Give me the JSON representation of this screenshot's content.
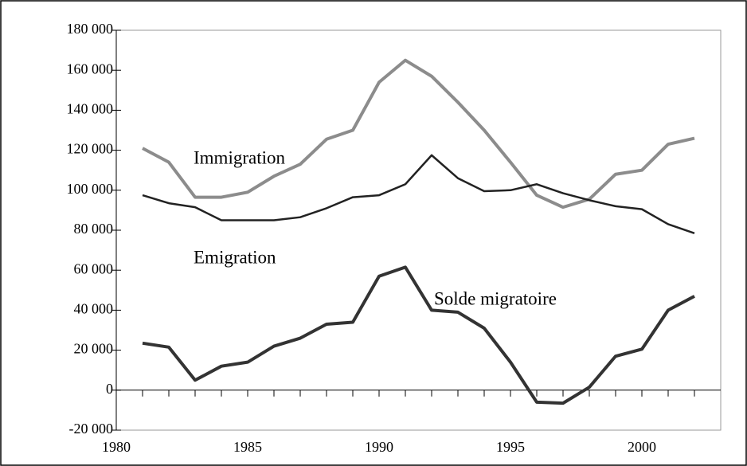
{
  "chart_data": {
    "type": "line",
    "x": [
      1981,
      1982,
      1983,
      1984,
      1985,
      1986,
      1987,
      1988,
      1989,
      1990,
      1991,
      1992,
      1993,
      1994,
      1995,
      1996,
      1997,
      1998,
      1999,
      2000,
      2001,
      2002
    ],
    "series": [
      {
        "name": "Immigration",
        "color": "#8c8c8c",
        "line_width": 4,
        "values": [
          121000,
          114000,
          96500,
          96500,
          99000,
          107000,
          113000,
          125500,
          130000,
          154000,
          165000,
          157000,
          144000,
          130000,
          114000,
          97500,
          91500,
          95500,
          108000,
          110000,
          123000,
          126000
        ]
      },
      {
        "name": "Emigration",
        "color": "#222222",
        "line_width": 2.5,
        "values": [
          97500,
          93500,
          91500,
          85000,
          85000,
          85000,
          86500,
          91000,
          96500,
          97500,
          103000,
          117500,
          106000,
          99500,
          100000,
          103000,
          98500,
          95000,
          92000,
          90500,
          83000,
          78500
        ]
      },
      {
        "name": "Solde migratoire",
        "color": "#333333",
        "line_width": 4,
        "values": [
          23500,
          21500,
          5000,
          12000,
          14000,
          22000,
          26000,
          33000,
          34000,
          57000,
          61500,
          40000,
          39000,
          31000,
          14000,
          -6000,
          -6500,
          1500,
          17000,
          20500,
          40000,
          47000
        ]
      }
    ],
    "xlim": [
      1980,
      2003
    ],
    "xticks": [
      1980,
      1985,
      1990,
      1995,
      2000
    ],
    "ylim": [
      -20000,
      180000
    ],
    "yticks": [
      {
        "value": -20000,
        "label": "-20 000"
      },
      0,
      {
        "value": 20000,
        "label": "20 000"
      },
      {
        "value": 40000,
        "label": "40 000"
      },
      {
        "value": 60000,
        "label": "60 000"
      },
      {
        "value": 80000,
        "label": "80 000"
      },
      {
        "value": 100000,
        "label": "100 000"
      },
      {
        "value": 120000,
        "label": "120 000"
      },
      {
        "value": 140000,
        "label": "140 000"
      },
      {
        "value": 160000,
        "label": "160 000"
      },
      {
        "value": 180000,
        "label": "180 000"
      }
    ],
    "grid": false
  }
}
